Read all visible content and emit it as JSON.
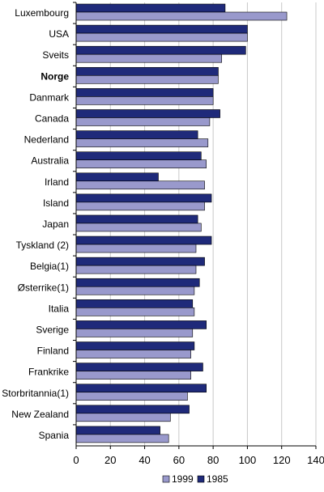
{
  "chart_data": {
    "type": "bar",
    "orientation": "horizontal",
    "categories": [
      "Luxembourg",
      "USA",
      "Sveits",
      "Norge",
      "Danmark",
      "Canada",
      "Nederland",
      "Australia",
      "Irland",
      "Island",
      "Japan",
      "Tyskland (2)",
      "Belgia(1)",
      "Østerrike(1)",
      "Italia",
      "Sverige",
      "Finland",
      "Frankrike",
      "Storbritannia(1)",
      "New Zealand",
      "Spania"
    ],
    "emphasized_category": "Norge",
    "series": [
      {
        "name": "1985",
        "color": "#1f2a7a",
        "values": [
          87,
          100,
          99,
          83,
          80,
          84,
          71,
          73,
          48,
          79,
          71,
          79,
          75,
          72,
          68,
          76,
          69,
          74,
          76,
          66,
          49
        ]
      },
      {
        "name": "1999",
        "color": "#9999cc",
        "values": [
          123,
          100,
          85,
          83,
          80,
          78,
          77,
          76,
          75,
          75,
          73,
          70,
          70,
          69,
          69,
          68,
          67,
          67,
          65,
          55,
          54
        ]
      }
    ],
    "xlim": [
      0,
      140
    ],
    "xticks": [
      "0",
      "20",
      "40",
      "60",
      "80",
      "100",
      "120",
      "140"
    ],
    "grid": true,
    "legend": {
      "placement": "bottom",
      "entries": [
        "1999",
        "1985"
      ]
    },
    "title": "",
    "xlabel": "",
    "ylabel": ""
  }
}
